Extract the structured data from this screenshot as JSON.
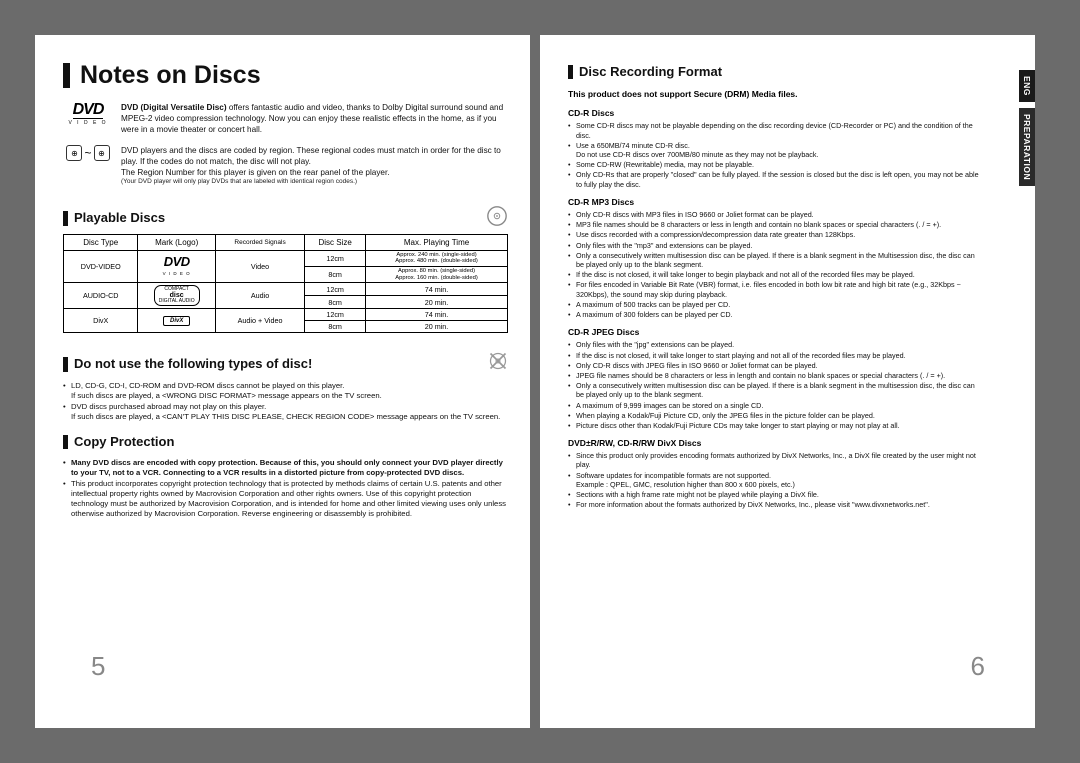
{
  "left": {
    "title": "Notes on Discs",
    "dvd_intro_bold": "DVD (Digital Versatile Disc)",
    "dvd_intro": " offers fantastic audio and video, thanks to Dolby Digital surround sound and MPEG-2 video compression technology. Now you can enjoy these realistic effects in the home, as if you were in a movie theater or concert hall.",
    "region_text": "DVD players and the discs are coded by region. These regional codes must match in order for the disc to play. If the codes do not match, the disc will not play.\nThe Region Number for this player is given on the rear panel of the player.",
    "region_fineprint": "(Your DVD player will only play DVDs that are labeled with identical region codes.)",
    "playable_heading": "Playable Discs",
    "table": {
      "headers": [
        "Disc Type",
        "Mark (Logo)",
        "Recorded Signals",
        "Disc Size",
        "Max. Playing Time"
      ],
      "rows": [
        {
          "type": "DVD-VIDEO",
          "mark": "DVD",
          "mark_sub": "V I D E O",
          "signals": "Video",
          "sizes": [
            {
              "size": "12cm",
              "time": "Approx. 240 min. (single-sided)\nApprox. 480 min. (double-sided)"
            },
            {
              "size": "8cm",
              "time": "Approx. 80 min. (single-sided)\nApprox. 160 min. (double-sided)"
            }
          ]
        },
        {
          "type": "AUDIO-CD",
          "mark": "COMPACT DISC",
          "signals": "Audio",
          "sizes": [
            {
              "size": "12cm",
              "time": "74 min."
            },
            {
              "size": "8cm",
              "time": "20 min."
            }
          ]
        },
        {
          "type": "DivX",
          "mark": "DivX",
          "signals": "Audio + Video",
          "sizes": [
            {
              "size": "12cm",
              "time": "74 min."
            },
            {
              "size": "8cm",
              "time": "20 min."
            }
          ]
        }
      ]
    },
    "donot_heading": "Do not use the following types of disc!",
    "donot_bullets": [
      "LD, CD-G, CD-I, CD-ROM and DVD-ROM discs cannot be played on this player.\nIf such discs are played, a <WRONG DISC FORMAT> message appears on the TV screen.",
      "DVD discs purchased abroad may not play on this player.\nIf such discs are played, a <CAN'T PLAY THIS DISC PLEASE, CHECK REGION CODE> message appears on the TV screen."
    ],
    "copy_heading": "Copy Protection",
    "copy_bullets": [
      "Many DVD discs are encoded with copy protection. Because of this, you should only connect your DVD player directly to your TV, not to a VCR. Connecting to a VCR results in a distorted picture from copy-protected DVD discs.",
      "This product incorporates copyright protection technology that is protected by methods claims of certain U.S. patents and other intellectual property rights owned by Macrovision Corporation and other rights owners. Use of this copyright protection technology must be authorized by Macrovision Corporation, and is intended for home and other limited viewing uses only unless otherwise authorized by Macrovision Corporation. Reverse engineering or disassembly is prohibited."
    ],
    "page_number": "5"
  },
  "right": {
    "tabs": {
      "lang": "ENG",
      "section": "PREPARATION"
    },
    "recording_heading": "Disc Recording Format",
    "drm_notice": "This product does not support Secure (DRM) Media files.",
    "groups": [
      {
        "title": "CD-R Discs",
        "items": [
          "Some CD-R discs may not be playable depending on the disc recording device (CD-Recorder or PC) and the condition of the disc.",
          "Use a 650MB/74 minute CD-R disc.\nDo not use CD-R discs over 700MB/80 minute as they may not be playback.",
          "Some CD-RW (Rewritable) media, may not be playable.",
          "Only CD-Rs that are properly \"closed\" can be fully played. If the session is closed but the disc is left open, you may not be able to fully play the disc."
        ]
      },
      {
        "title": "CD-R MP3 Discs",
        "items": [
          "Only CD-R discs with MP3 files in ISO 9660 or Joliet format can be played.",
          "MP3 file names should be 8 characters or less in length and contain no blank spaces or special characters (. / = +).",
          "Use discs recorded with a compression/decompression data rate greater than 128Kbps.",
          "Only files with the \"mp3\" and extensions can be played.",
          "Only a consecutively written multisession disc can be played. If there is a blank segment in the Multisession disc, the disc can be played only up to the blank segment.",
          "If the disc is not closed, it will take longer to begin playback and not all of the recorded files may be played.",
          "For files encoded in Variable Bit Rate (VBR) format, i.e. files encoded in both low bit rate and high bit rate (e.g., 32Kbps ~ 320Kbps), the sound may skip during playback.",
          "A maximum of 500 tracks can be played per CD.",
          "A maximum of 300 folders can be played per CD."
        ]
      },
      {
        "title": "CD-R JPEG Discs",
        "items": [
          "Only files with the \"jpg\" extensions can be played.",
          "If the disc is not closed, it will take longer to start playing and not all of the recorded files may be played.",
          "Only CD-R discs with JPEG files in ISO 9660 or Joliet format can be played.",
          "JPEG file names should be 8 characters or less in length and contain no blank spaces or special characters (. / = +).",
          "Only a consecutively written multisession disc can be played. If there is a blank segment in the multisession disc, the disc can be played only up to the blank segment.",
          "A maximum of 9,999 images can be stored on a single CD.",
          "When playing a Kodak/Fuji Picture CD, only the JPEG files in the picture folder can be played.",
          "Picture discs other than Kodak/Fuji Picture CDs may take longer to start playing or may not play at all."
        ]
      },
      {
        "title": "DVD±R/RW, CD-R/RW DivX Discs",
        "items": [
          "Since this product only provides encoding formats authorized by DivX Networks, Inc., a DivX file created by the user might not play.",
          "Software updates for incompatible formats are not supported.\nExample : QPEL, GMC, resolution higher than 800 x 600 pixels, etc.)",
          "Sections with a high frame rate might not be played while playing a DivX file.",
          "For more information about the formats authorized by DivX Networks, Inc., please visit \"www.divxnetworks.net\"."
        ]
      }
    ],
    "page_number": "6"
  },
  "colors": {
    "bg": "#6b6b6b",
    "page": "#ffffff",
    "text": "#111111",
    "tab_dark": "#1a1a1a",
    "pagenum": "#888888"
  }
}
